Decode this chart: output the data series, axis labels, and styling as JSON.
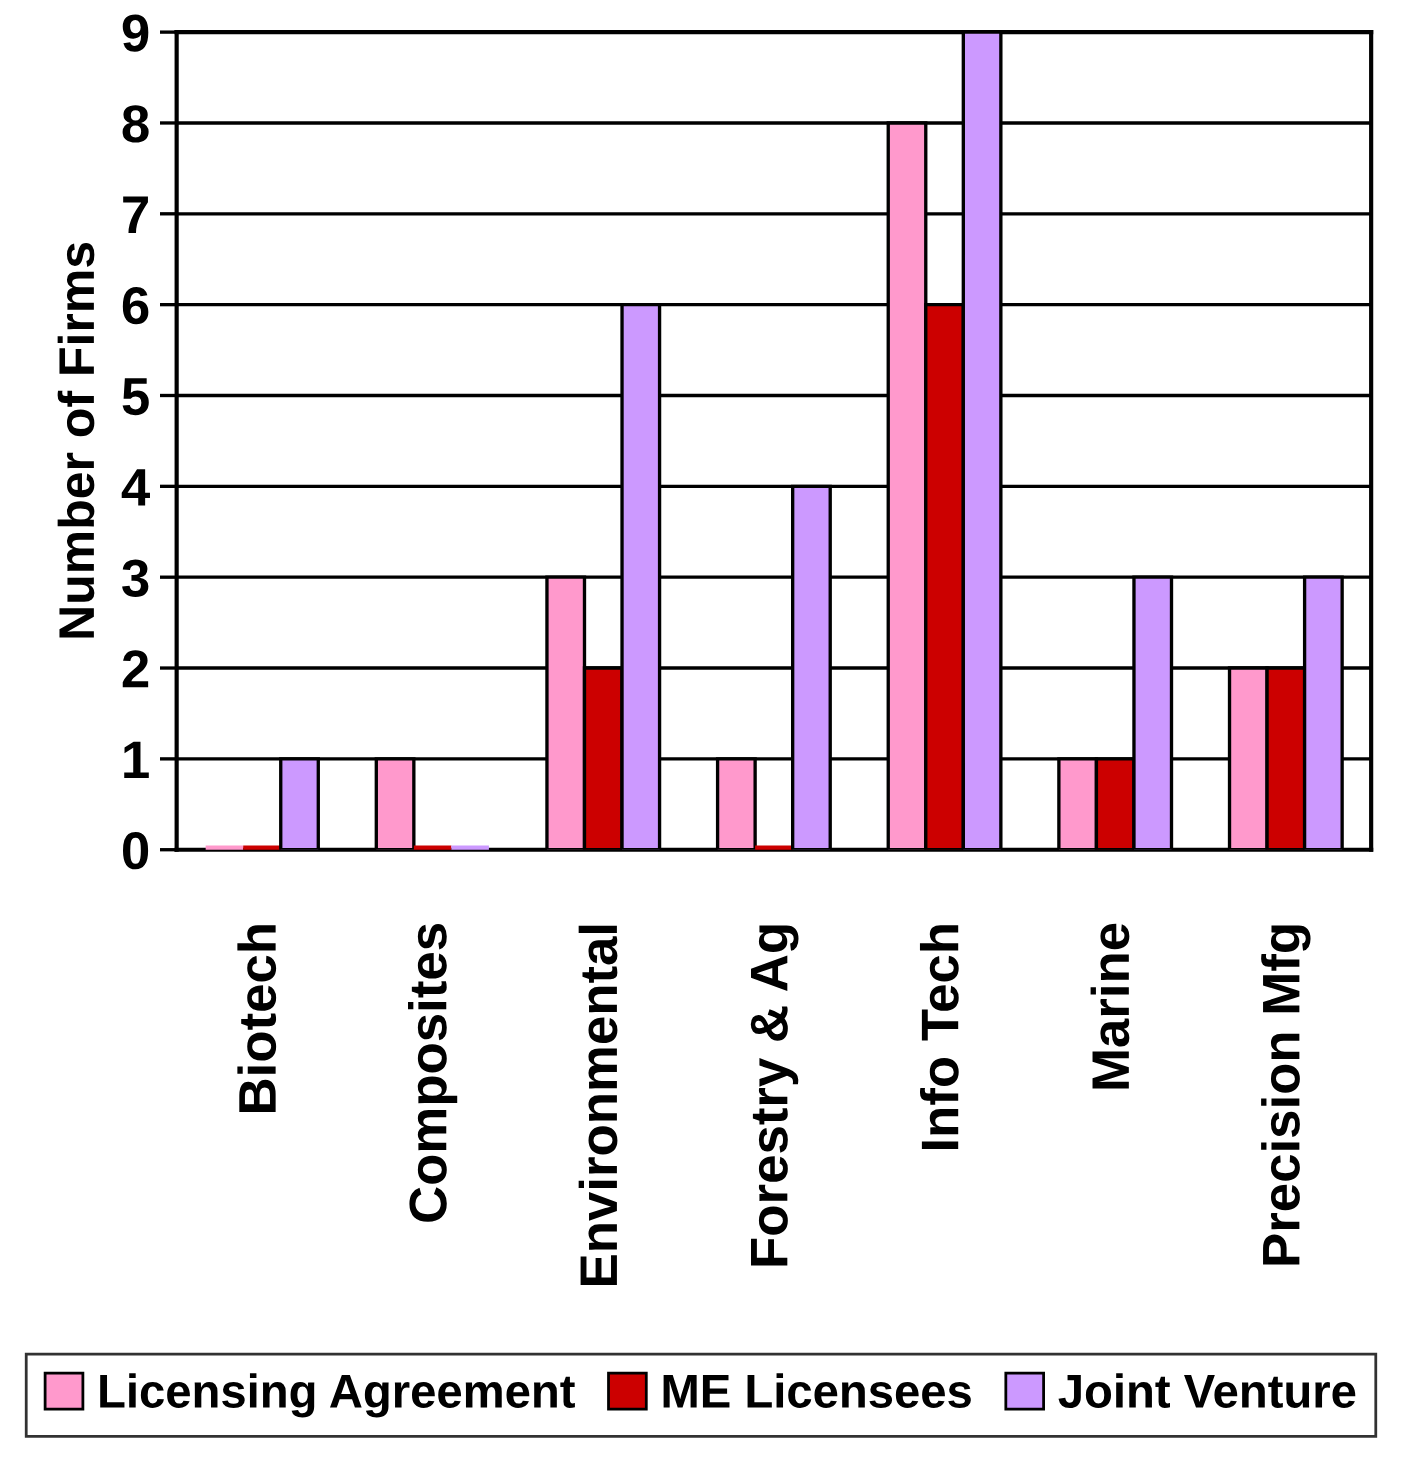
{
  "chart_data": {
    "type": "bar",
    "ylabel": "Number of Firms",
    "categories": [
      "Biotech",
      "Composites",
      "Environmental",
      "Forestry & Ag",
      "Info Tech",
      "Marine",
      "Precision Mfg"
    ],
    "series": [
      {
        "name": "Licensing Agreement",
        "color": "#ff99cc",
        "values": [
          0,
          1,
          3,
          1,
          8,
          1,
          2
        ]
      },
      {
        "name": "ME Licensees",
        "color": "#cc0000",
        "values": [
          0,
          0,
          2,
          0,
          6,
          1,
          2
        ]
      },
      {
        "name": "Joint Venture",
        "color": "#cc99ff",
        "values": [
          1,
          0,
          6,
          4,
          9,
          3,
          3
        ]
      }
    ],
    "ylim": [
      0,
      9
    ],
    "yticks": [
      0,
      1,
      2,
      3,
      4,
      5,
      6,
      7,
      8,
      9
    ],
    "grid": "y",
    "legend": "bottom"
  }
}
